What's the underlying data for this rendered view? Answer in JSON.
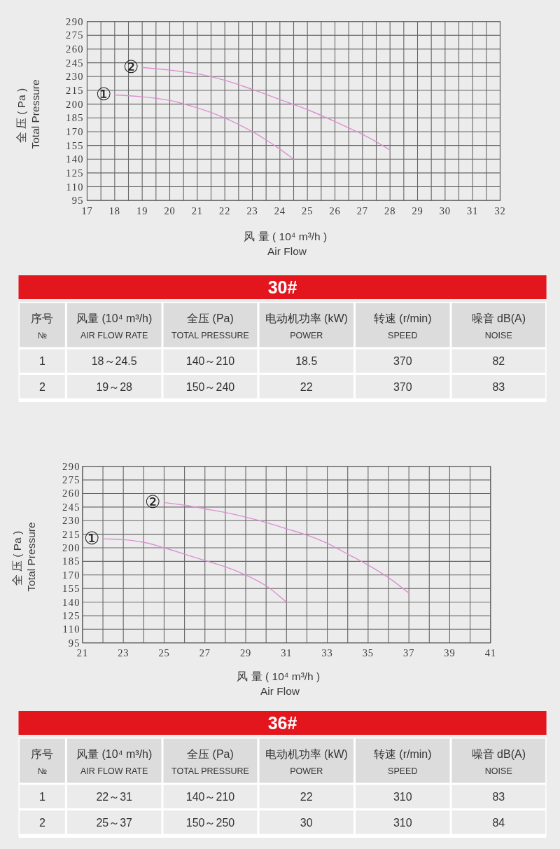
{
  "chart_data": [
    {
      "type": "line",
      "xlabel": "风 量 ( 10⁴ m³/h )\nAir Flow",
      "ylabel": "全 压 ( Pa )\nTotal Pressure",
      "xlim": [
        17,
        32
      ],
      "xticks": [
        17,
        {
          "value": 17.5,
          "label": null
        },
        18,
        {
          "value": 18.5,
          "label": null
        },
        19,
        {
          "value": 19.5,
          "label": null
        },
        20,
        {
          "value": 20.5,
          "label": null
        },
        21,
        {
          "value": 21.5,
          "label": null
        },
        22,
        {
          "value": 22.5,
          "label": null
        },
        23,
        {
          "value": 23.5,
          "label": null
        },
        24,
        {
          "value": 24.5,
          "label": null
        },
        25,
        {
          "value": 25.5,
          "label": null
        },
        26,
        {
          "value": 26.5,
          "label": null
        },
        27,
        {
          "value": 27.5,
          "label": null
        },
        28,
        {
          "value": 28.5,
          "label": null
        },
        29,
        {
          "value": 29.5,
          "label": null
        },
        30,
        {
          "value": 30.5,
          "label": null
        },
        31,
        {
          "value": 31.5,
          "label": null
        },
        32
      ],
      "ylim": [
        95,
        290
      ],
      "yticks": [
        95,
        110,
        125,
        140,
        155,
        170,
        185,
        200,
        215,
        230,
        245,
        260,
        275,
        290
      ],
      "grid": true,
      "series": [
        {
          "color": "#dc8fd0",
          "x": [
            18,
            19,
            20,
            21,
            22,
            23,
            23.5,
            24,
            24.5
          ],
          "values": [
            210,
            208,
            204,
            196,
            185,
            170,
            161,
            151,
            140
          ]
        },
        {
          "color": "#dc8fd0",
          "x": [
            19,
            20,
            21,
            22,
            23,
            24,
            25,
            26,
            27,
            27.5,
            28
          ],
          "values": [
            240,
            237,
            233,
            226,
            216,
            205,
            194,
            181,
            167,
            159,
            150
          ]
        }
      ],
      "annotations": [
        "①",
        "②"
      ]
    },
    {
      "type": "other",
      "title": "30#",
      "annotations": [
        "序号",
        "№",
        "风量 (10⁴ m³/h)",
        "AIR FLOW RATE",
        "全压 (Pa)",
        "TOTAL PRESSURE",
        "电动机功率 (kW)",
        "POWER",
        "转速 (r/min)",
        "SPEED",
        "噪音  dB(A)",
        "NOISE",
        "1",
        "18～24.5",
        "140～210",
        "18.5",
        "370",
        "82",
        "2",
        "19～28",
        "150～240",
        "22",
        "370",
        "83"
      ]
    },
    {
      "type": "line",
      "xlabel": "风 量 ( 10⁴ m³/h )\nAir Flow",
      "ylabel": "全 压 ( Pa )\nTotal Pressure",
      "xlim": [
        21,
        41
      ],
      "xticks": [
        21,
        {
          "value": 22,
          "label": null
        },
        23,
        {
          "value": 24,
          "label": null
        },
        25,
        {
          "value": 26,
          "label": null
        },
        27,
        {
          "value": 28,
          "label": null
        },
        29,
        {
          "value": 30,
          "label": null
        },
        31,
        {
          "value": 32,
          "label": null
        },
        33,
        {
          "value": 34,
          "label": null
        },
        35,
        {
          "value": 36,
          "label": null
        },
        37,
        {
          "value": 38,
          "label": null
        },
        39,
        {
          "value": 40,
          "label": null
        },
        41
      ],
      "ylim": [
        95,
        290
      ],
      "yticks": [
        95,
        110,
        125,
        140,
        155,
        170,
        185,
        200,
        215,
        230,
        245,
        260,
        275,
        290
      ],
      "grid": true,
      "series": [
        {
          "color": "#dc8fd0",
          "x": [
            22,
            23,
            24,
            25,
            26,
            27,
            28,
            29,
            30,
            31
          ],
          "values": [
            210,
            209,
            206,
            200,
            193,
            186,
            179,
            170,
            158,
            140
          ]
        },
        {
          "color": "#dc8fd0",
          "x": [
            25,
            26,
            27,
            28,
            29,
            30,
            31,
            32,
            33,
            34,
            35,
            36,
            37
          ],
          "values": [
            250,
            247,
            243,
            239,
            234,
            228,
            221,
            214,
            205,
            193,
            181,
            167,
            150
          ]
        }
      ],
      "annotations": [
        "①",
        "②"
      ]
    },
    {
      "type": "other",
      "title": "36#",
      "annotations": [
        "序号",
        "№",
        "风量 (10⁴ m³/h)",
        "AIR FLOW RATE",
        "全压 (Pa)",
        "TOTAL PRESSURE",
        "电动机功率 (kW)",
        "POWER",
        "转速 (r/min)",
        "SPEED",
        "噪音  dB(A)",
        "NOISE",
        "1",
        "22～31",
        "140～210",
        "22",
        "310",
        "83",
        "2",
        "25～37",
        "150～250",
        "30",
        "310",
        "84"
      ]
    }
  ]
}
